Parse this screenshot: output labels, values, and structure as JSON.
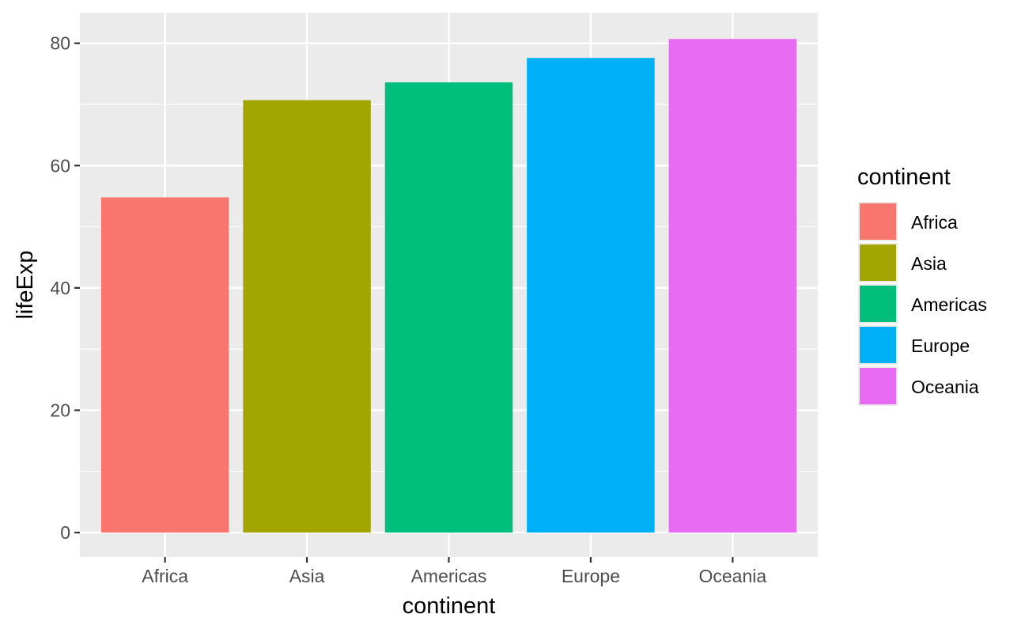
{
  "chart_data": {
    "type": "bar",
    "categories": [
      "Africa",
      "Asia",
      "Americas",
      "Europe",
      "Oceania"
    ],
    "values": [
      54.8,
      70.7,
      73.6,
      77.6,
      80.7
    ],
    "colors": [
      "#F8766D",
      "#A3A500",
      "#00BF7D",
      "#00B0F6",
      "#E76BF3"
    ],
    "xlabel": "continent",
    "ylabel": "lifeExp",
    "ylim": [
      -4,
      85
    ],
    "yticks": [
      0,
      20,
      40,
      60,
      80
    ],
    "yminor": [
      10,
      30,
      50,
      70
    ],
    "grid": true,
    "panel_background": "#EBEBEB",
    "legend": {
      "title": "continent",
      "placement": "right",
      "entries": [
        "Africa",
        "Asia",
        "Americas",
        "Europe",
        "Oceania"
      ]
    }
  }
}
